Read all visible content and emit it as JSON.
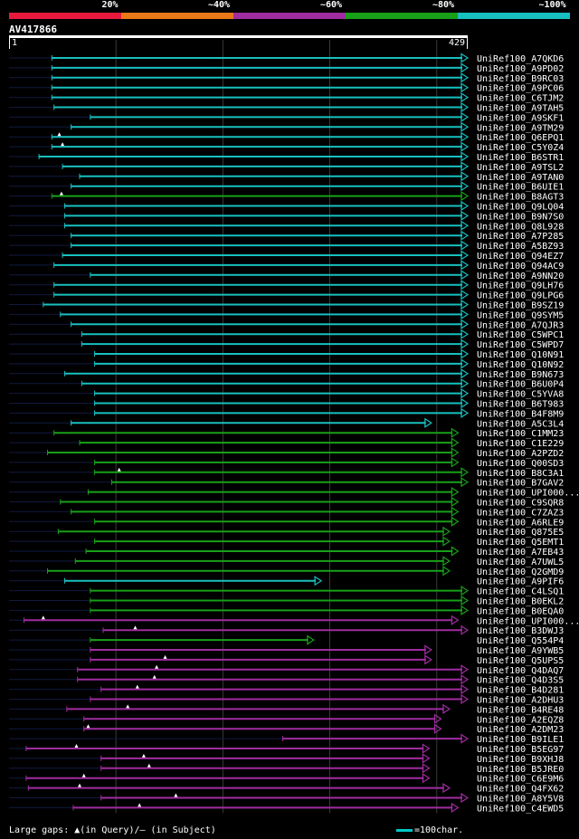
{
  "legend": {
    "segments": [
      {
        "label": "20%",
        "color": "#e8193c"
      },
      {
        "label": "~40%",
        "color": "#e87818"
      },
      {
        "label": "~60%",
        "color": "#a02ca0"
      },
      {
        "label": "~80%",
        "color": "#18a018"
      },
      {
        "label": "~100%",
        "color": "#18c0c0"
      }
    ]
  },
  "query": {
    "name": "AV417866",
    "start_label": "1",
    "end_label": "429"
  },
  "footer": {
    "gaps_text": "Large gaps: ▲(in Query)/– (in Subject)",
    "scale_text": "=100char."
  },
  "colors": {
    "cyan": "#18c0c0",
    "green": "#18a018",
    "purple": "#a02ca0",
    "grid": "#3a3a3a",
    "faint": "#101a40"
  },
  "hits": [
    {
      "name": "UniRef100_A7QKD6",
      "color": "cyan",
      "start": 40,
      "end": 429,
      "arrow": true
    },
    {
      "name": "UniRef100_A9PD02",
      "color": "cyan",
      "start": 40,
      "end": 429,
      "arrow": true
    },
    {
      "name": "UniRef100_B9RC03",
      "color": "cyan",
      "start": 40,
      "end": 429,
      "arrow": true
    },
    {
      "name": "UniRef100_A9PC06",
      "color": "cyan",
      "start": 40,
      "end": 429,
      "arrow": true
    },
    {
      "name": "UniRef100_C6TJM2",
      "color": "cyan",
      "start": 40,
      "end": 429,
      "arrow": true
    },
    {
      "name": "UniRef100_A9TAH5",
      "color": "cyan",
      "start": 42,
      "end": 429,
      "arrow": true
    },
    {
      "name": "UniRef100_A9SKF1",
      "color": "cyan",
      "start": 76,
      "end": 429,
      "arrow": true
    },
    {
      "name": "UniRef100_A9TM29",
      "color": "cyan",
      "start": 58,
      "end": 429,
      "arrow": true
    },
    {
      "name": "UniRef100_Q6EPQ1",
      "color": "cyan",
      "start": 40,
      "end": 429,
      "arrow": true,
      "qgap": 47
    },
    {
      "name": "UniRef100_C5Y0Z4",
      "color": "cyan",
      "start": 40,
      "end": 429,
      "arrow": true,
      "qgap": 50
    },
    {
      "name": "UniRef100_B6STR1",
      "color": "cyan",
      "start": 28,
      "end": 429,
      "arrow": true
    },
    {
      "name": "UniRef100_A9TSL2",
      "color": "cyan",
      "start": 50,
      "end": 429,
      "arrow": true
    },
    {
      "name": "UniRef100_A9TAN0",
      "color": "cyan",
      "start": 66,
      "end": 429,
      "arrow": true
    },
    {
      "name": "UniRef100_B6UIE1",
      "color": "cyan",
      "start": 58,
      "end": 429,
      "arrow": true
    },
    {
      "name": "UniRef100_B8AGT3",
      "color": "green",
      "start": 40,
      "end": 429,
      "arrow": true,
      "qgap": 49
    },
    {
      "name": "UniRef100_Q9LQ04",
      "color": "cyan",
      "start": 52,
      "end": 429,
      "arrow": true
    },
    {
      "name": "UniRef100_B9N7S0",
      "color": "cyan",
      "start": 52,
      "end": 429,
      "arrow": true
    },
    {
      "name": "UniRef100_Q8L928",
      "color": "cyan",
      "start": 52,
      "end": 429,
      "arrow": true
    },
    {
      "name": "UniRef100_A7P285",
      "color": "cyan",
      "start": 58,
      "end": 429,
      "arrow": true
    },
    {
      "name": "UniRef100_A5BZ93",
      "color": "cyan",
      "start": 58,
      "end": 429,
      "arrow": true
    },
    {
      "name": "UniRef100_Q94EZ7",
      "color": "cyan",
      "start": 50,
      "end": 429,
      "arrow": true
    },
    {
      "name": "UniRef100_Q94AC9",
      "color": "cyan",
      "start": 42,
      "end": 429,
      "arrow": true
    },
    {
      "name": "UniRef100_A9NN20",
      "color": "cyan",
      "start": 76,
      "end": 429,
      "arrow": true
    },
    {
      "name": "UniRef100_Q9LH76",
      "color": "cyan",
      "start": 42,
      "end": 429,
      "arrow": true
    },
    {
      "name": "UniRef100_Q9LPG6",
      "color": "cyan",
      "start": 42,
      "end": 429,
      "arrow": true
    },
    {
      "name": "UniRef100_B9SZ19",
      "color": "cyan",
      "start": 32,
      "end": 429,
      "arrow": true
    },
    {
      "name": "UniRef100_Q9SYM5",
      "color": "cyan",
      "start": 48,
      "end": 429,
      "arrow": true
    },
    {
      "name": "UniRef100_A7QJR3",
      "color": "cyan",
      "start": 58,
      "end": 429,
      "arrow": true
    },
    {
      "name": "UniRef100_C5WPC1",
      "color": "cyan",
      "start": 68,
      "end": 429,
      "arrow": true
    },
    {
      "name": "UniRef100_C5WPD7",
      "color": "cyan",
      "start": 68,
      "end": 429,
      "arrow": true
    },
    {
      "name": "UniRef100_Q10N91",
      "color": "cyan",
      "start": 80,
      "end": 429,
      "arrow": true
    },
    {
      "name": "UniRef100_Q10N92",
      "color": "cyan",
      "start": 80,
      "end": 429,
      "arrow": true
    },
    {
      "name": "UniRef100_B9N673",
      "color": "cyan",
      "start": 52,
      "end": 429,
      "arrow": true
    },
    {
      "name": "UniRef100_B6U0P4",
      "color": "cyan",
      "start": 68,
      "end": 429,
      "arrow": true
    },
    {
      "name": "UniRef100_C5YVA8",
      "color": "cyan",
      "start": 80,
      "end": 429,
      "arrow": true
    },
    {
      "name": "UniRef100_B6T983",
      "color": "cyan",
      "start": 80,
      "end": 429,
      "arrow": true
    },
    {
      "name": "UniRef100_B4F8M9",
      "color": "cyan",
      "start": 80,
      "end": 429,
      "arrow": true
    },
    {
      "name": "UniRef100_A5C3L4",
      "color": "cyan",
      "start": 58,
      "end": 395,
      "arrow": true
    },
    {
      "name": "UniRef100_C1MM23",
      "color": "green",
      "start": 42,
      "end": 420,
      "arrow": true
    },
    {
      "name": "UniRef100_C1E229",
      "color": "green",
      "start": 66,
      "end": 420,
      "arrow": true
    },
    {
      "name": "UniRef100_A2PZD2",
      "color": "green",
      "start": 36,
      "end": 420,
      "arrow": true
    },
    {
      "name": "UniRef100_Q00SD3",
      "color": "green",
      "start": 80,
      "end": 420,
      "arrow": true
    },
    {
      "name": "UniRef100_B8C3A1",
      "color": "green",
      "start": 80,
      "end": 429,
      "arrow": true,
      "qgap": 103
    },
    {
      "name": "UniRef100_B7GAV2",
      "color": "green",
      "start": 96,
      "end": 429,
      "arrow": true
    },
    {
      "name": "UniRef100_UPI000...",
      "color": "green",
      "start": 74,
      "end": 420,
      "arrow": true
    },
    {
      "name": "UniRef100_C9SQR8",
      "color": "green",
      "start": 48,
      "end": 420,
      "arrow": true
    },
    {
      "name": "UniRef100_C7ZAZ3",
      "color": "green",
      "start": 58,
      "end": 420,
      "arrow": true
    },
    {
      "name": "UniRef100_A6RLE9",
      "color": "green",
      "start": 80,
      "end": 420,
      "arrow": true
    },
    {
      "name": "UniRef100_Q875E5",
      "color": "green",
      "start": 46,
      "end": 412,
      "arrow": true
    },
    {
      "name": "UniRef100_Q5EMT1",
      "color": "green",
      "start": 80,
      "end": 412,
      "arrow": true
    },
    {
      "name": "UniRef100_A7EB43",
      "color": "green",
      "start": 72,
      "end": 420,
      "arrow": true
    },
    {
      "name": "UniRef100_A7UWL5",
      "color": "green",
      "start": 62,
      "end": 412,
      "arrow": true
    },
    {
      "name": "UniRef100_Q2GMD9",
      "color": "green",
      "start": 36,
      "end": 412,
      "arrow": true
    },
    {
      "name": "UniRef100_A9PIF6",
      "color": "cyan",
      "start": 52,
      "end": 292,
      "arrow": true
    },
    {
      "name": "UniRef100_C4LSQ1",
      "color": "green",
      "start": 76,
      "end": 429,
      "arrow": true
    },
    {
      "name": "UniRef100_B0EKL2",
      "color": "green",
      "start": 76,
      "end": 429,
      "arrow": true
    },
    {
      "name": "UniRef100_B0EQA0",
      "color": "green",
      "start": 76,
      "end": 429,
      "arrow": true
    },
    {
      "name": "UniRef100_UPI000...",
      "color": "purple",
      "start": 14,
      "end": 420,
      "arrow": true,
      "qgap": 32
    },
    {
      "name": "UniRef100_B3DWJ3",
      "color": "purple",
      "start": 88,
      "end": 429,
      "arrow": true,
      "qgap": 118
    },
    {
      "name": "UniRef100_Q554P4",
      "color": "green",
      "start": 76,
      "end": 285,
      "arrow": true
    },
    {
      "name": "UniRef100_A9YWB5",
      "color": "purple",
      "start": 76,
      "end": 395,
      "arrow": true
    },
    {
      "name": "UniRef100_Q5UPS5",
      "color": "purple",
      "start": 76,
      "end": 395,
      "arrow": true,
      "qgap": 146
    },
    {
      "name": "UniRef100_Q4DAQ7",
      "color": "purple",
      "start": 64,
      "end": 429,
      "arrow": true,
      "qgap": 138
    },
    {
      "name": "UniRef100_Q4D3S5",
      "color": "purple",
      "start": 64,
      "end": 429,
      "arrow": true,
      "qgap": 136
    },
    {
      "name": "UniRef100_B4D281",
      "color": "purple",
      "start": 86,
      "end": 429,
      "arrow": true,
      "qgap": 120
    },
    {
      "name": "UniRef100_A2DHU3",
      "color": "purple",
      "start": 76,
      "end": 429,
      "arrow": true
    },
    {
      "name": "UniRef100_B4RE48",
      "color": "purple",
      "start": 54,
      "end": 412,
      "arrow": true,
      "qgap": 111
    },
    {
      "name": "UniRef100_A2EQZ8",
      "color": "purple",
      "start": 70,
      "end": 404,
      "arrow": true
    },
    {
      "name": "UniRef100_A2DM23",
      "color": "purple",
      "start": 70,
      "end": 404,
      "arrow": true,
      "qgap": 74
    },
    {
      "name": "UniRef100_B9ILE1",
      "color": "purple",
      "start": 256,
      "end": 429,
      "arrow": true
    },
    {
      "name": "UniRef100_B5EG97",
      "color": "purple",
      "start": 16,
      "end": 393,
      "arrow": true,
      "qgap": 63
    },
    {
      "name": "UniRef100_B9XHJ8",
      "color": "purple",
      "start": 86,
      "end": 393,
      "arrow": true,
      "qgap": 126
    },
    {
      "name": "UniRef100_B5JRE0",
      "color": "purple",
      "start": 86,
      "end": 393,
      "arrow": true,
      "qgap": 131
    },
    {
      "name": "UniRef100_C6E9M6",
      "color": "purple",
      "start": 16,
      "end": 393,
      "arrow": true,
      "qgap": 70
    },
    {
      "name": "UniRef100_Q4FX62",
      "color": "purple",
      "start": 18,
      "end": 412,
      "arrow": true,
      "qgap": 66
    },
    {
      "name": "UniRef100_A8Y5V8",
      "color": "purple",
      "start": 86,
      "end": 429,
      "arrow": true,
      "qgap": 156
    },
    {
      "name": "UniRef100_C4EWD5",
      "color": "purple",
      "start": 60,
      "end": 420,
      "arrow": true,
      "qgap": 122
    }
  ]
}
